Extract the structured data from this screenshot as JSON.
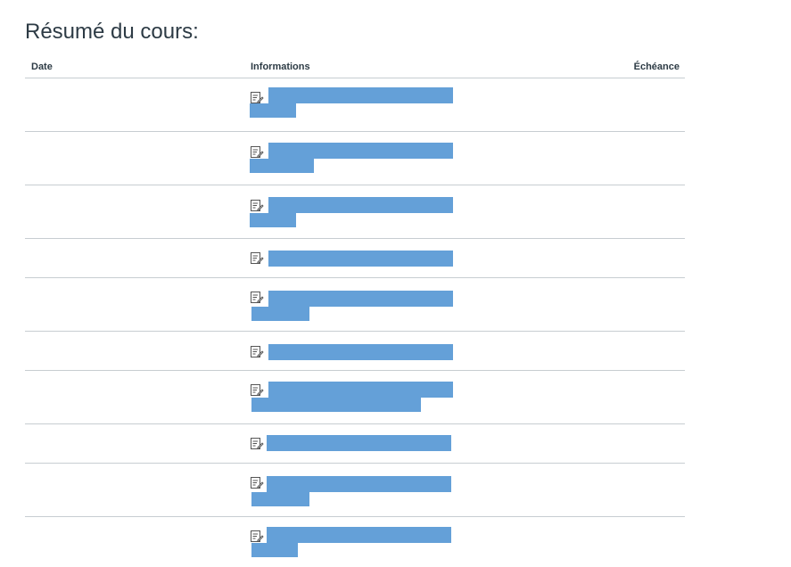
{
  "summary": {
    "title": "Résumé du cours:",
    "columns": {
      "date": "Date",
      "information": "Informations",
      "due": "Échéance"
    },
    "icon": "assignment-icon"
  },
  "colors": {
    "redaction": "#64a0d8",
    "divider": "#c7cdd1",
    "text": "#2d3b45"
  }
}
